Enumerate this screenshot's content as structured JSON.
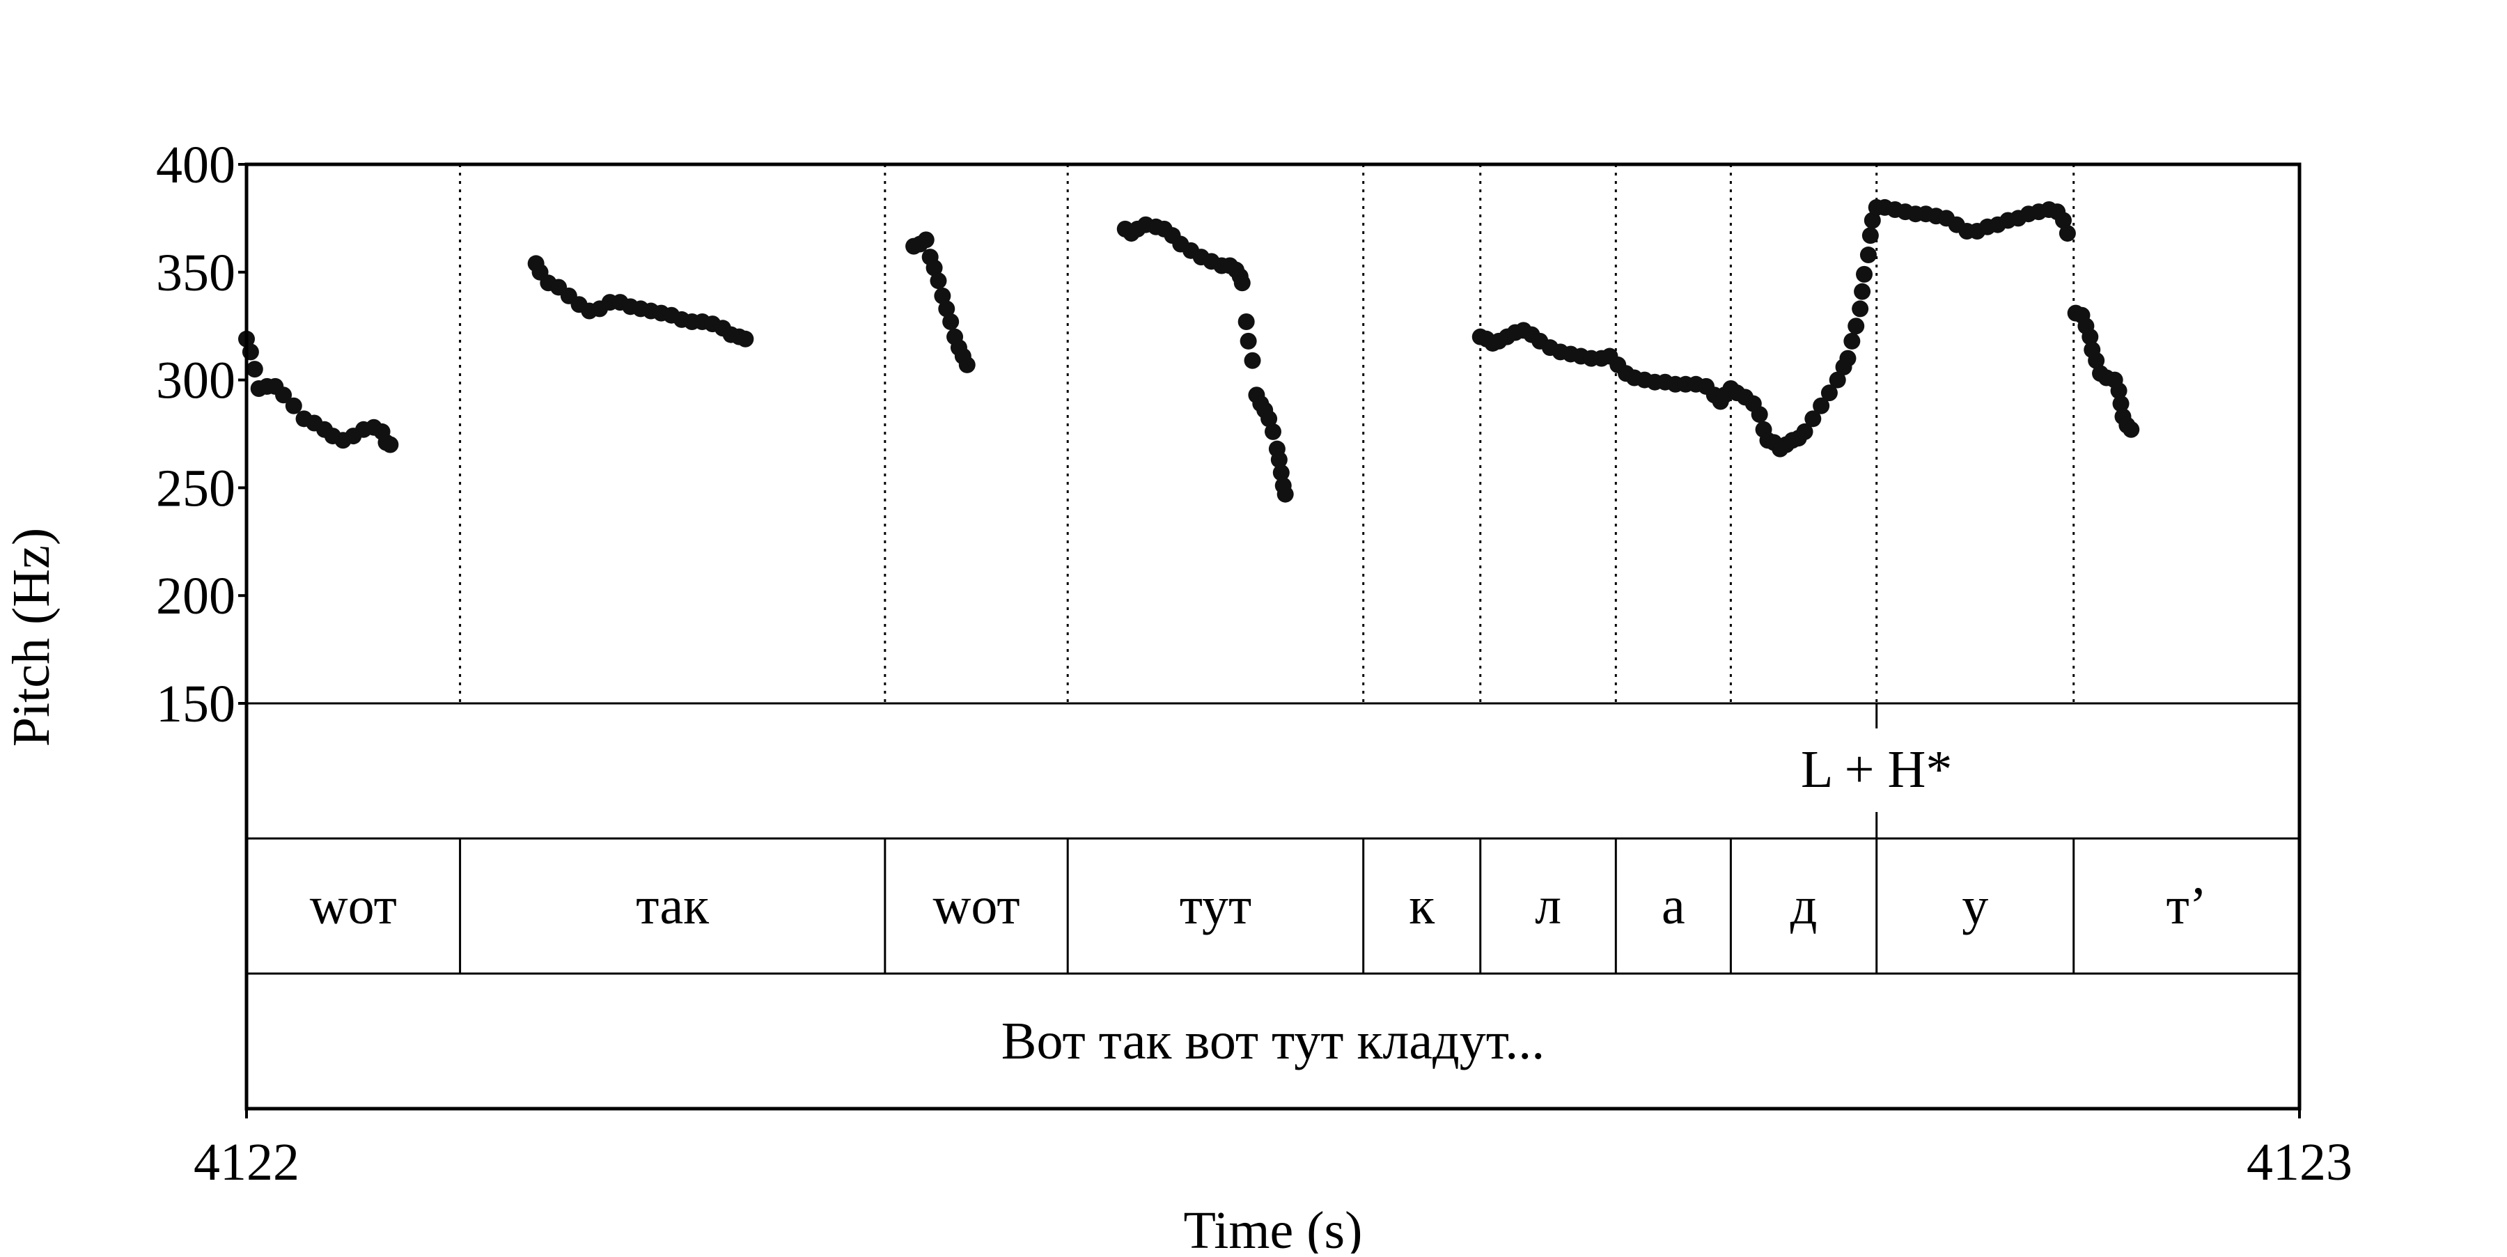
{
  "chart_data": {
    "type": "scatter",
    "xlabel": "Time (s)",
    "ylabel": "Pitch (Hz)",
    "xlim": [
      4122,
      4123
    ],
    "ylim": [
      150,
      400
    ],
    "yticks": [
      "150",
      "200",
      "250",
      "300",
      "350",
      "400"
    ],
    "xticks": [
      "4122",
      "4123"
    ],
    "boundaries": [
      0.104,
      0.311,
      0.4,
      0.544,
      0.601,
      0.667,
      0.723,
      0.794,
      0.89
    ],
    "tone_tier": {
      "mark_time": 0.794,
      "label": "L + H*"
    },
    "word_tier": [
      {
        "label": "wот",
        "start": 0.0,
        "end": 0.104
      },
      {
        "label": "так",
        "start": 0.104,
        "end": 0.311
      },
      {
        "label": "wот",
        "start": 0.311,
        "end": 0.4
      },
      {
        "label": "тут",
        "start": 0.4,
        "end": 0.544
      },
      {
        "label": "к",
        "start": 0.544,
        "end": 0.601
      },
      {
        "label": "л",
        "start": 0.601,
        "end": 0.667
      },
      {
        "label": "а",
        "start": 0.667,
        "end": 0.723
      },
      {
        "label": "д",
        "start": 0.723,
        "end": 0.794
      },
      {
        "label": "у",
        "start": 0.794,
        "end": 0.89
      },
      {
        "label": "т’",
        "start": 0.89,
        "end": 1.0
      }
    ],
    "utterance_tier": [
      {
        "label": "Вот так вот тут кладут...",
        "start": 0.0,
        "end": 1.0
      }
    ],
    "pitch_segments": [
      [
        [
          0.0,
          319
        ],
        [
          0.002,
          313
        ],
        [
          0.004,
          305
        ],
        [
          0.006,
          296
        ],
        [
          0.01,
          297
        ],
        [
          0.014,
          297
        ],
        [
          0.018,
          293
        ],
        [
          0.023,
          288
        ],
        [
          0.028,
          282
        ],
        [
          0.033,
          280
        ],
        [
          0.038,
          277
        ],
        [
          0.042,
          274
        ],
        [
          0.047,
          272
        ],
        [
          0.052,
          274
        ],
        [
          0.057,
          277
        ],
        [
          0.062,
          278
        ],
        [
          0.066,
          276
        ],
        [
          0.068,
          271
        ],
        [
          0.07,
          270
        ]
      ],
      [
        [
          0.141,
          354
        ],
        [
          0.143,
          350
        ],
        [
          0.147,
          345
        ],
        [
          0.152,
          343
        ],
        [
          0.157,
          339
        ],
        [
          0.162,
          335
        ],
        [
          0.167,
          332
        ],
        [
          0.172,
          333
        ],
        [
          0.177,
          336
        ],
        [
          0.182,
          336
        ],
        [
          0.187,
          334
        ],
        [
          0.192,
          333
        ],
        [
          0.197,
          332
        ],
        [
          0.202,
          331
        ],
        [
          0.207,
          330
        ],
        [
          0.212,
          328
        ],
        [
          0.217,
          327
        ],
        [
          0.222,
          327
        ],
        [
          0.227,
          326
        ],
        [
          0.232,
          324
        ],
        [
          0.236,
          321
        ],
        [
          0.24,
          320
        ],
        [
          0.243,
          319
        ]
      ],
      [
        [
          0.325,
          362
        ],
        [
          0.328,
          363
        ],
        [
          0.331,
          365
        ],
        [
          0.333,
          357
        ],
        [
          0.335,
          352
        ],
        [
          0.337,
          346
        ],
        [
          0.339,
          339
        ],
        [
          0.341,
          333
        ],
        [
          0.343,
          327
        ],
        [
          0.345,
          320
        ],
        [
          0.347,
          315
        ],
        [
          0.349,
          311
        ],
        [
          0.351,
          307
        ]
      ],
      [
        [
          0.428,
          370
        ],
        [
          0.431,
          368
        ],
        [
          0.434,
          370
        ],
        [
          0.438,
          372
        ],
        [
          0.443,
          371
        ],
        [
          0.447,
          370
        ],
        [
          0.451,
          367
        ],
        [
          0.455,
          363
        ],
        [
          0.46,
          360
        ],
        [
          0.465,
          357
        ],
        [
          0.47,
          355
        ],
        [
          0.475,
          353
        ],
        [
          0.479,
          353
        ],
        [
          0.482,
          351
        ],
        [
          0.484,
          348
        ],
        [
          0.485,
          345
        ],
        [
          0.487,
          327
        ],
        [
          0.488,
          318
        ],
        [
          0.49,
          309
        ],
        [
          0.492,
          293
        ],
        [
          0.494,
          289
        ],
        [
          0.496,
          286
        ],
        [
          0.498,
          282
        ],
        [
          0.5,
          276
        ],
        [
          0.502,
          268
        ],
        [
          0.503,
          263
        ],
        [
          0.504,
          257
        ],
        [
          0.505,
          251
        ],
        [
          0.506,
          247
        ]
      ],
      [
        [
          0.601,
          320
        ],
        [
          0.604,
          319
        ],
        [
          0.607,
          317
        ],
        [
          0.61,
          318
        ],
        [
          0.614,
          320
        ],
        [
          0.618,
          322
        ],
        [
          0.622,
          323
        ],
        [
          0.626,
          321
        ],
        [
          0.63,
          318
        ],
        [
          0.635,
          315
        ],
        [
          0.64,
          313
        ],
        [
          0.645,
          312
        ],
        [
          0.65,
          311
        ],
        [
          0.655,
          310
        ],
        [
          0.66,
          310
        ],
        [
          0.664,
          311
        ],
        [
          0.668,
          307
        ],
        [
          0.672,
          303
        ],
        [
          0.676,
          301
        ],
        [
          0.681,
          300
        ],
        [
          0.686,
          299
        ],
        [
          0.691,
          299
        ],
        [
          0.696,
          298
        ],
        [
          0.701,
          298
        ],
        [
          0.706,
          298
        ],
        [
          0.711,
          297
        ],
        [
          0.715,
          293
        ],
        [
          0.718,
          290
        ],
        [
          0.72,
          293
        ],
        [
          0.723,
          296
        ],
        [
          0.726,
          294
        ],
        [
          0.73,
          292
        ],
        [
          0.734,
          289
        ],
        [
          0.737,
          284
        ],
        [
          0.739,
          277
        ],
        [
          0.741,
          272
        ],
        [
          0.744,
          271
        ],
        [
          0.747,
          268
        ],
        [
          0.75,
          270
        ],
        [
          0.753,
          272
        ],
        [
          0.756,
          273
        ],
        [
          0.759,
          276
        ],
        [
          0.763,
          282
        ],
        [
          0.767,
          288
        ],
        [
          0.771,
          294
        ],
        [
          0.775,
          300
        ],
        [
          0.778,
          306
        ],
        [
          0.78,
          310
        ],
        [
          0.782,
          318
        ],
        [
          0.784,
          325
        ],
        [
          0.786,
          333
        ],
        [
          0.787,
          341
        ],
        [
          0.788,
          349
        ],
        [
          0.79,
          358
        ],
        [
          0.791,
          367
        ],
        [
          0.792,
          374
        ],
        [
          0.794,
          380
        ],
        [
          0.798,
          380
        ],
        [
          0.803,
          379
        ],
        [
          0.808,
          378
        ],
        [
          0.813,
          377
        ],
        [
          0.818,
          377
        ],
        [
          0.823,
          376
        ],
        [
          0.828,
          375
        ],
        [
          0.833,
          372
        ],
        [
          0.838,
          369
        ],
        [
          0.843,
          369
        ],
        [
          0.848,
          371
        ],
        [
          0.853,
          372
        ],
        [
          0.858,
          374
        ],
        [
          0.863,
          375
        ],
        [
          0.868,
          377
        ],
        [
          0.873,
          378
        ],
        [
          0.878,
          379
        ],
        [
          0.882,
          378
        ],
        [
          0.885,
          374
        ],
        [
          0.887,
          368
        ]
      ],
      [
        [
          0.891,
          331
        ],
        [
          0.894,
          330
        ],
        [
          0.896,
          325
        ],
        [
          0.898,
          320
        ],
        [
          0.899,
          314
        ],
        [
          0.901,
          309
        ],
        [
          0.903,
          303
        ],
        [
          0.906,
          301
        ],
        [
          0.91,
          300
        ],
        [
          0.912,
          295
        ],
        [
          0.913,
          289
        ],
        [
          0.914,
          283
        ],
        [
          0.916,
          279
        ],
        [
          0.918,
          277
        ]
      ]
    ]
  }
}
